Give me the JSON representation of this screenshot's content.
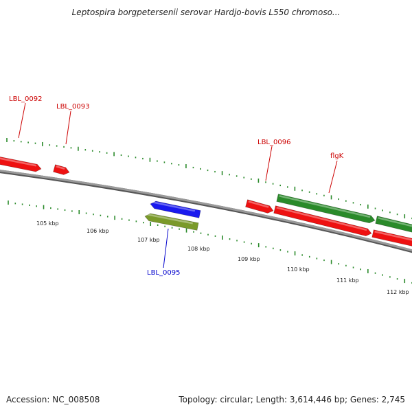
{
  "title": "Leptospira borgpetersenii serovar Hardjo-bovis L550 chromoso...",
  "footer": {
    "accession": "Accession: NC_008508",
    "summary": "Topology: circular; Length: 3,614,446 bp; Genes: 2,745"
  },
  "colors": {
    "backbone": "#808080",
    "tick": "#2a8a2a",
    "red_gene": "#ee1111",
    "green_gene": "#2a8a2a",
    "blue_gene": "#1a1aee",
    "olive_gene": "#7a9a2a",
    "red_label": "#cc0000",
    "blue_label": "#0000cc"
  },
  "axis": {
    "labels": [
      "105 kbp",
      "106 kbp",
      "107 kbp",
      "108 kbp",
      "109 kbp",
      "110 kbp",
      "111 kbp",
      "112 kbp"
    ]
  },
  "genes": [
    {
      "id": "g1",
      "color": "red",
      "strand": "forward"
    },
    {
      "id": "g2",
      "color": "red",
      "strand": "forward"
    },
    {
      "id": "g3",
      "color": "blue",
      "strand": "reverse"
    },
    {
      "id": "g4",
      "color": "olive",
      "strand": "reverse"
    },
    {
      "id": "g5",
      "color": "red",
      "strand": "forward"
    },
    {
      "id": "g6",
      "color": "green",
      "strand": "forward"
    },
    {
      "id": "g7",
      "color": "red",
      "strand": "forward"
    },
    {
      "id": "g8",
      "color": "green",
      "strand": "forward"
    },
    {
      "id": "g9",
      "color": "red",
      "strand": "forward"
    }
  ],
  "gene_labels": [
    {
      "text": "LBL_0092",
      "color": "red"
    },
    {
      "text": "LBL_0093",
      "color": "red"
    },
    {
      "text": "LBL_0096",
      "color": "red"
    },
    {
      "text": "flgK",
      "color": "red"
    },
    {
      "text": "LBL_0095",
      "color": "blue"
    }
  ]
}
